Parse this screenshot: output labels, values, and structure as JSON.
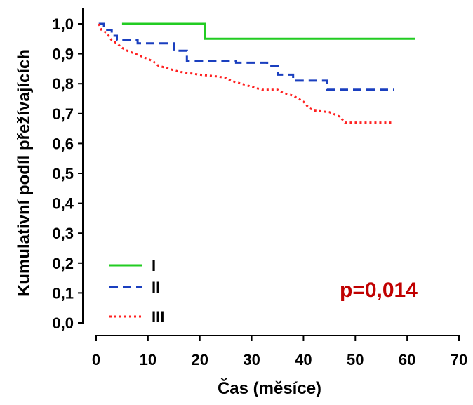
{
  "chart_data": {
    "type": "line",
    "subtype": "kaplan-meier-step",
    "title": "",
    "xlabel": "Čas (měsíce)",
    "ylabel": "Kumulativní podíl přežívajících",
    "xlim": [
      0,
      70
    ],
    "ylim": [
      0.0,
      1.0
    ],
    "xticks": [
      0,
      10,
      20,
      30,
      40,
      50,
      60,
      70
    ],
    "xtick_labels": [
      "0",
      "10",
      "20",
      "30",
      "40",
      "50",
      "60",
      "70"
    ],
    "yticks": [
      0.0,
      0.1,
      0.2,
      0.3,
      0.4,
      0.5,
      0.6,
      0.7,
      0.8,
      0.9,
      1.0
    ],
    "ytick_labels": [
      "0,0",
      "0,1",
      "0,2",
      "0,3",
      "0,4",
      "0,5",
      "0,6",
      "0,7",
      "0,8",
      "0,9",
      "1,0"
    ],
    "grid": false,
    "legend_position": "bottom-left",
    "annotation": {
      "text": "p=0,014",
      "color": "#c00000"
    },
    "series": [
      {
        "name": "I",
        "color": "#22cc22",
        "dash": "solid",
        "points": [
          [
            5,
            1.0
          ],
          [
            21,
            1.0
          ],
          [
            21,
            0.95
          ],
          [
            61.5,
            0.95
          ]
        ]
      },
      {
        "name": "II",
        "color": "#1a3fbf",
        "dash": "dashed",
        "points": [
          [
            0.5,
            1.0
          ],
          [
            1.5,
            1.0
          ],
          [
            1.5,
            0.98
          ],
          [
            3,
            0.98
          ],
          [
            3,
            0.96
          ],
          [
            4,
            0.96
          ],
          [
            4,
            0.945
          ],
          [
            8,
            0.945
          ],
          [
            8,
            0.935
          ],
          [
            15,
            0.935
          ],
          [
            15,
            0.91
          ],
          [
            17.5,
            0.91
          ],
          [
            17.5,
            0.875
          ],
          [
            27,
            0.875
          ],
          [
            27,
            0.87
          ],
          [
            33,
            0.87
          ],
          [
            33,
            0.86
          ],
          [
            35,
            0.86
          ],
          [
            35,
            0.83
          ],
          [
            38,
            0.83
          ],
          [
            38,
            0.81
          ],
          [
            44.5,
            0.81
          ],
          [
            44.5,
            0.78
          ],
          [
            57.5,
            0.78
          ]
        ]
      },
      {
        "name": "III",
        "color": "#ff2020",
        "dash": "dotted",
        "points": [
          [
            0.5,
            1.0
          ],
          [
            1,
            0.98
          ],
          [
            2,
            0.97
          ],
          [
            3,
            0.945
          ],
          [
            4,
            0.935
          ],
          [
            5,
            0.92
          ],
          [
            6,
            0.91
          ],
          [
            7.5,
            0.9
          ],
          [
            9,
            0.89
          ],
          [
            11,
            0.875
          ],
          [
            12,
            0.86
          ],
          [
            14,
            0.85
          ],
          [
            16,
            0.84
          ],
          [
            18,
            0.835
          ],
          [
            20,
            0.83
          ],
          [
            23,
            0.825
          ],
          [
            25,
            0.82
          ],
          [
            26,
            0.81
          ],
          [
            28,
            0.8
          ],
          [
            30,
            0.79
          ],
          [
            32,
            0.78
          ],
          [
            35,
            0.78
          ],
          [
            36,
            0.77
          ],
          [
            38,
            0.76
          ],
          [
            39,
            0.75
          ],
          [
            40,
            0.74
          ],
          [
            41,
            0.72
          ],
          [
            42,
            0.71
          ],
          [
            45,
            0.705
          ],
          [
            47,
            0.69
          ],
          [
            48,
            0.67
          ],
          [
            57.5,
            0.67
          ]
        ]
      }
    ]
  }
}
